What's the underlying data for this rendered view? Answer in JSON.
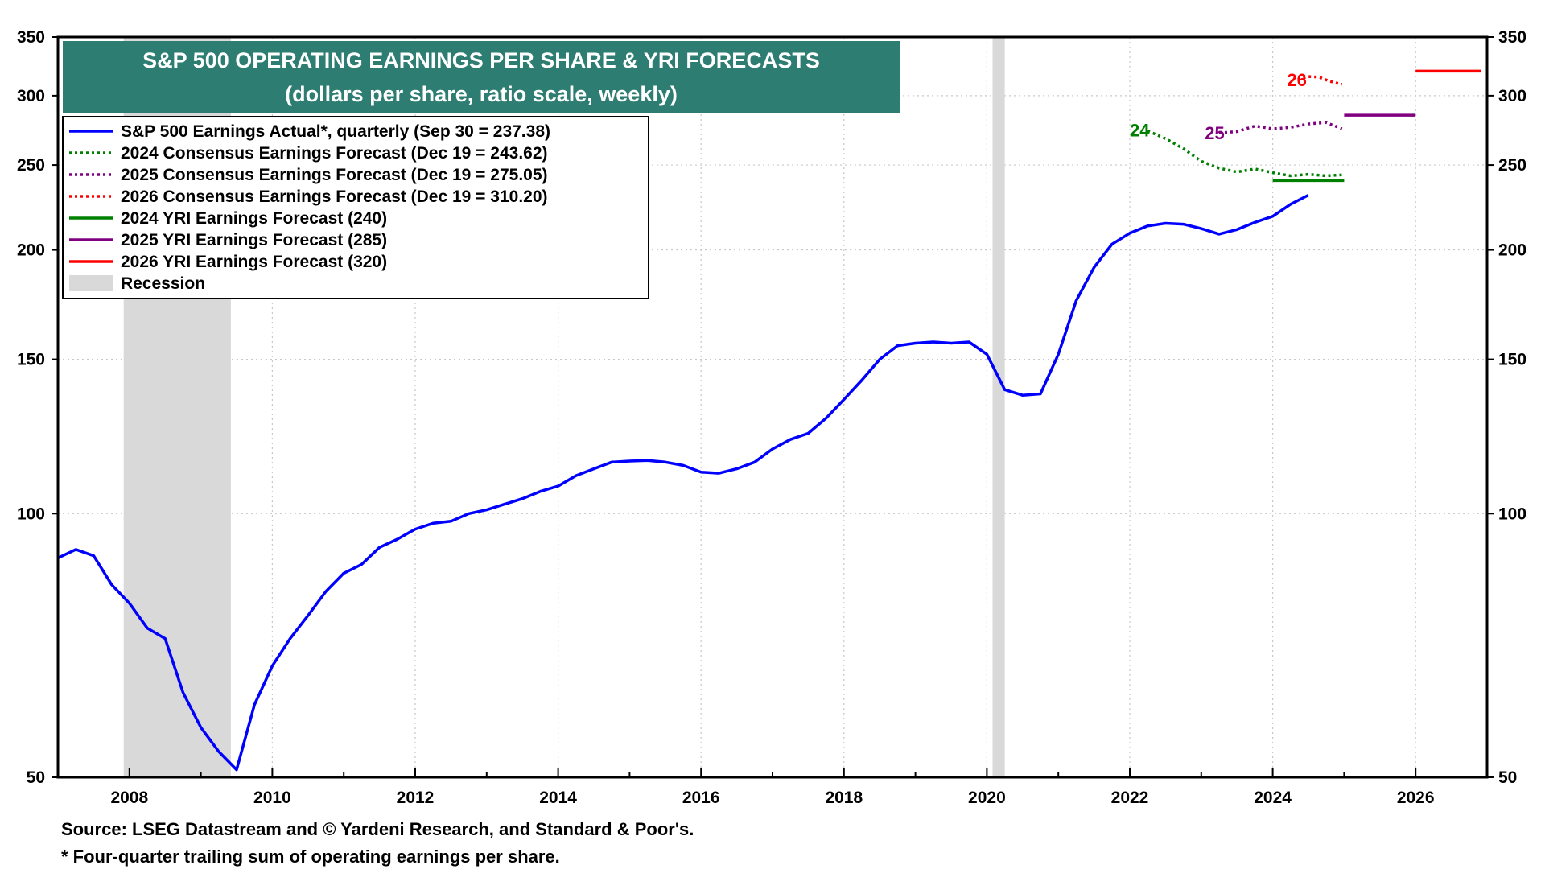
{
  "chart_data": {
    "type": "line",
    "title": "S&P 500 OPERATING EARNINGS PER SHARE & YRI FORECASTS",
    "subtitle": "(dollars per share, ratio scale, weekly)",
    "xlim": [
      2007.0,
      2027.0
    ],
    "ylim": [
      50,
      350
    ],
    "yscale": "log",
    "x_ticks": [
      "2008",
      "2010",
      "2012",
      "2014",
      "2016",
      "2018",
      "2020",
      "2022",
      "2024",
      "2026"
    ],
    "y_ticks": [
      "50",
      "100",
      "150",
      "200",
      "250",
      "300",
      "350"
    ],
    "grid": true,
    "legend_position": "top-left",
    "recessions": [
      {
        "start": 2007.92,
        "end": 2009.42
      },
      {
        "start": 2020.08,
        "end": 2020.25
      }
    ],
    "series": [
      {
        "name": "S&P 500 Earnings Actual*, quarterly (Sep 30 = 237.38)",
        "color": "#0000ff",
        "style": "solid",
        "x": [
          2007.0,
          2007.25,
          2007.5,
          2007.75,
          2008.0,
          2008.25,
          2008.5,
          2008.75,
          2009.0,
          2009.25,
          2009.5,
          2009.75,
          2010.0,
          2010.25,
          2010.5,
          2010.75,
          2011.0,
          2011.25,
          2011.5,
          2011.75,
          2012.0,
          2012.25,
          2012.5,
          2012.75,
          2013.0,
          2013.25,
          2013.5,
          2013.75,
          2014.0,
          2014.25,
          2014.5,
          2014.75,
          2015.0,
          2015.25,
          2015.5,
          2015.75,
          2016.0,
          2016.25,
          2016.5,
          2016.75,
          2017.0,
          2017.25,
          2017.5,
          2017.75,
          2018.0,
          2018.25,
          2018.5,
          2018.75,
          2019.0,
          2019.25,
          2019.5,
          2019.75,
          2020.0,
          2020.25,
          2020.5,
          2020.75,
          2021.0,
          2021.25,
          2021.5,
          2021.75,
          2022.0,
          2022.25,
          2022.5,
          2022.75,
          2023.0,
          2023.25,
          2023.5,
          2023.75,
          2024.0,
          2024.25,
          2024.5
        ],
        "values": [
          89,
          91,
          89.5,
          83,
          79,
          74,
          72,
          62.5,
          57,
          53.5,
          51,
          60.5,
          67,
          72,
          76.5,
          81.5,
          85.5,
          87.5,
          91.5,
          93.5,
          96,
          97.5,
          98,
          100,
          101,
          102.5,
          104,
          106,
          107.5,
          110.5,
          112.5,
          114.5,
          114.8,
          115,
          114.5,
          113.5,
          111.5,
          111.2,
          112.5,
          114.5,
          118.5,
          121.5,
          123.5,
          128.5,
          135,
          142,
          150,
          155.5,
          156.5,
          157,
          156.5,
          157,
          152,
          138.5,
          136.5,
          137,
          152,
          175,
          191,
          203,
          209,
          213,
          214.5,
          214,
          211.5,
          208.5,
          211,
          215,
          218.5,
          225.5,
          231
        ]
      },
      {
        "name": "2024 Consensus Earnings Forecast (Dec 19 = 243.62)",
        "color": "#008000",
        "style": "dotted",
        "x": [
          2022.25,
          2022.5,
          2022.75,
          2023.0,
          2023.25,
          2023.5,
          2023.75,
          2024.0,
          2024.25,
          2024.5,
          2024.75,
          2024.97
        ],
        "values": [
          273.5,
          268,
          261,
          252.5,
          248,
          245.5,
          247.5,
          245,
          243,
          244,
          243,
          243.6
        ]
      },
      {
        "name": "2025 Consensus Earnings Forecast (Dec 19 = 275.05)",
        "color": "#800080",
        "style": "dotted",
        "x": [
          2023.25,
          2023.5,
          2023.75,
          2024.0,
          2024.25,
          2024.5,
          2024.75,
          2024.97
        ],
        "values": [
          272,
          273,
          277,
          275,
          276,
          278.5,
          279.5,
          275
        ]
      },
      {
        "name": "2026 Consensus Earnings Forecast (Dec 19 = 310.20)",
        "color": "#ff0000",
        "style": "dotted",
        "x": [
          2024.35,
          2024.5,
          2024.65,
          2024.8,
          2024.97
        ],
        "values": [
          313,
          315.5,
          315,
          311.5,
          309
        ]
      },
      {
        "name": "2024 YRI Earnings Forecast (240)",
        "color": "#008000",
        "style": "solid",
        "x": [
          2024.0,
          2025.0
        ],
        "values": [
          240,
          240
        ]
      },
      {
        "name": "2025 YRI Earnings Forecast (285)",
        "color": "#800080",
        "style": "solid",
        "x": [
          2025.0,
          2026.0
        ],
        "values": [
          285,
          285
        ]
      },
      {
        "name": "2026 YRI Earnings Forecast (320)",
        "color": "#ff0000",
        "style": "solid",
        "x": [
          2026.0,
          2026.92
        ],
        "values": [
          320,
          320
        ]
      }
    ],
    "recession_label": "Recession",
    "annotations": [
      {
        "text": "24",
        "x": 2022.0,
        "y": 274,
        "color": "#008000"
      },
      {
        "text": "25",
        "x": 2023.05,
        "y": 272,
        "color": "#800080"
      },
      {
        "text": "26",
        "x": 2024.2,
        "y": 313,
        "color": "#ff0000"
      }
    ]
  },
  "footnotes": {
    "source": "Source: LSEG Datastream and © Yardeni Research, and Standard & Poor's.",
    "note": "* Four-quarter trailing sum of operating earnings per share."
  }
}
